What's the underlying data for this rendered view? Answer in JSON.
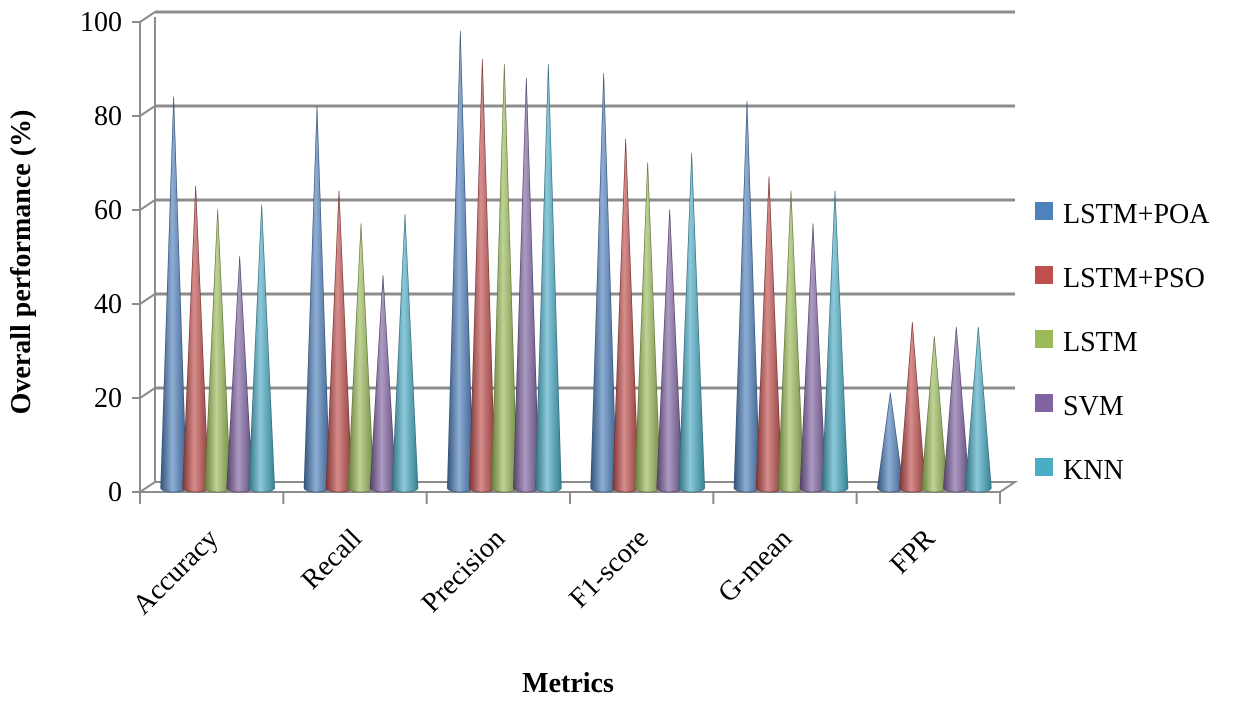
{
  "chart_data": {
    "type": "bar",
    "style": "3d-cone",
    "title": "",
    "xlabel": "Metrics",
    "ylabel": "Overall performance (%)",
    "ylim": [
      0,
      100
    ],
    "yticks": [
      "0",
      "20",
      "40",
      "60",
      "80",
      "100"
    ],
    "grid": true,
    "legend_position": "right",
    "categories": [
      "Accuracy",
      "Recall",
      "Precision",
      "F1-score",
      "G-mean",
      "FPR"
    ],
    "series": [
      {
        "name": "LSTM+POA",
        "color": "#4f81bd",
        "values": [
          82,
          80,
          96,
          87,
          81,
          19
        ]
      },
      {
        "name": "LSTM+PSO",
        "color": "#c0504d",
        "values": [
          63,
          62,
          90,
          73,
          65,
          34
        ]
      },
      {
        "name": "LSTM",
        "color": "#9bbb59",
        "values": [
          58,
          55,
          89,
          68,
          62,
          31
        ]
      },
      {
        "name": "SVM",
        "color": "#8064a2",
        "values": [
          48,
          44,
          86,
          58,
          55,
          33
        ]
      },
      {
        "name": "KNN",
        "color": "#4bacc6",
        "values": [
          59,
          57,
          89,
          70,
          62,
          33
        ]
      }
    ]
  }
}
